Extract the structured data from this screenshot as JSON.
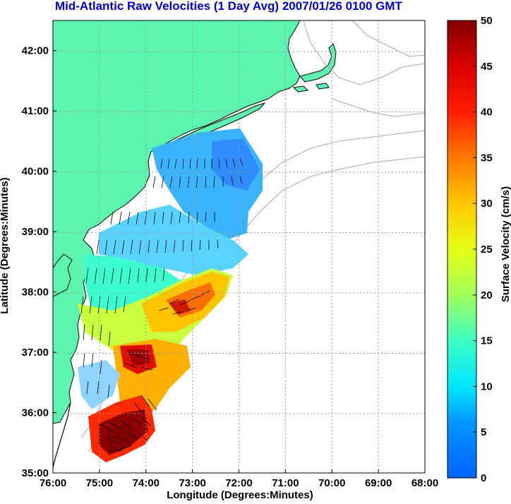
{
  "title": "Mid-Atlantic Raw Velocities (1 Day Avg) 2007/01/26 0100 GMT",
  "colors": {
    "title": "#0000cc",
    "land": "#5cf5b0",
    "coast": "#000000",
    "grid": "#9a9a9a",
    "bathy": "#a8a8a8"
  },
  "axes": {
    "x_label": "Longitude (Degrees:Minutes)",
    "y_label": "Latitude (Degrees:Minutes)",
    "x_ticks": [
      "76:00",
      "75:00",
      "74:00",
      "73:00",
      "72:00",
      "71:00",
      "70:00",
      "69:00",
      "68:00"
    ],
    "y_ticks": [
      "42:00",
      "41:00",
      "40:00",
      "39:00",
      "38:00",
      "37:00",
      "36:00",
      "35:00"
    ]
  },
  "colorbar": {
    "label": "Surface Velocity (cm/s)",
    "ticks": [
      "50",
      "45",
      "40",
      "35",
      "30",
      "25",
      "20",
      "15",
      "10",
      "5",
      "0"
    ],
    "min": 0,
    "max": 50
  },
  "map_extent": {
    "lon_range": [
      -76,
      -68
    ],
    "lat_range": [
      35,
      42.5
    ],
    "grid": "dotted"
  }
}
